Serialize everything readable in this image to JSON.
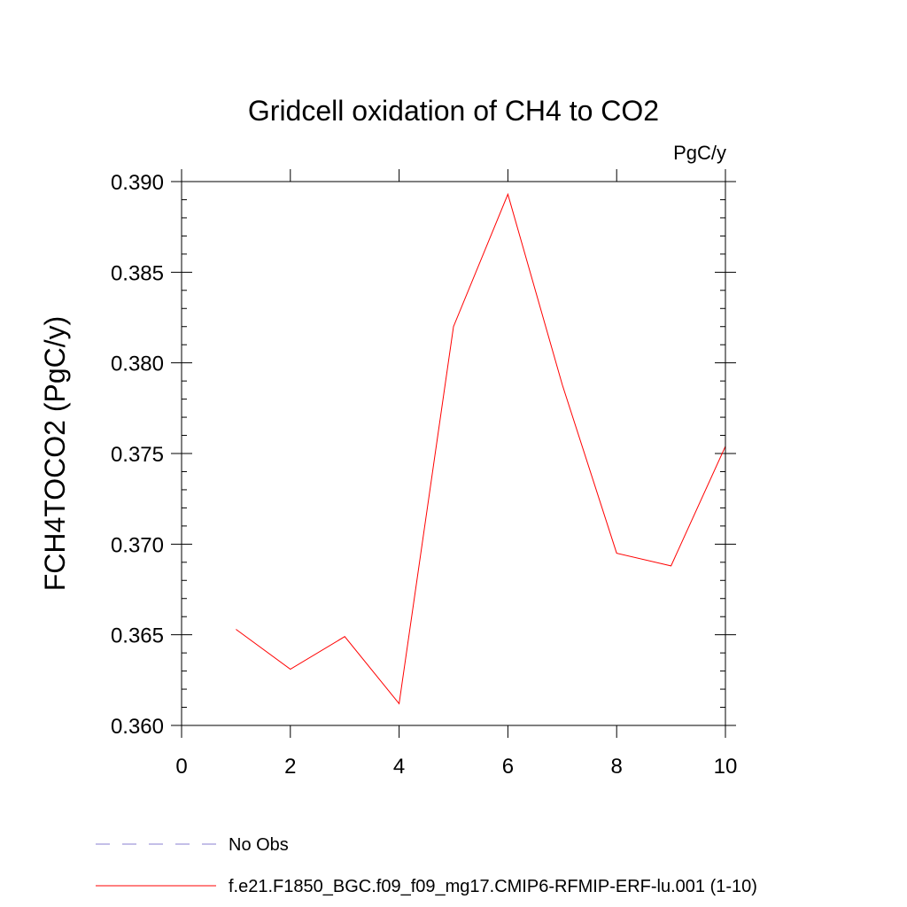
{
  "chart_data": {
    "type": "line",
    "title": "Gridcell oxidation of CH4 to CO2",
    "units": "PgC/y",
    "xlabel": "",
    "ylabel": "FCH4TOCO2  (PgC/y)",
    "xlim": [
      0,
      10
    ],
    "ylim": [
      0.36,
      0.39
    ],
    "xticks": [
      0,
      2,
      4,
      6,
      8,
      10
    ],
    "xtick_labels": [
      "0",
      "2",
      "4",
      "6",
      "8",
      "10"
    ],
    "yticks": [
      0.36,
      0.365,
      0.37,
      0.375,
      0.38,
      0.385,
      0.39
    ],
    "ytick_labels": [
      "0.360",
      "0.365",
      "0.370",
      "0.375",
      "0.380",
      "0.385",
      "0.390"
    ],
    "series": [
      {
        "name": "f.e21.F1850_BGC.f09_f09_mg17.CMIP6-RFMIP-ERF-lu.001 (1-10)",
        "color": "#ff0000",
        "x": [
          1,
          2,
          3,
          4,
          5,
          6,
          7,
          8,
          9,
          10
        ],
        "values": [
          0.3653,
          0.3631,
          0.3649,
          0.3612,
          0.382,
          0.3893,
          0.3788,
          0.3695,
          0.3688,
          0.3754
        ]
      }
    ],
    "legend": [
      {
        "label": "No Obs",
        "color": "#8a7fd0",
        "style": "dashed"
      },
      {
        "label": "f.e21.F1850_BGC.f09_f09_mg17.CMIP6-RFMIP-ERF-lu.001 (1-10)",
        "color": "#ff0000",
        "style": "solid"
      }
    ]
  }
}
